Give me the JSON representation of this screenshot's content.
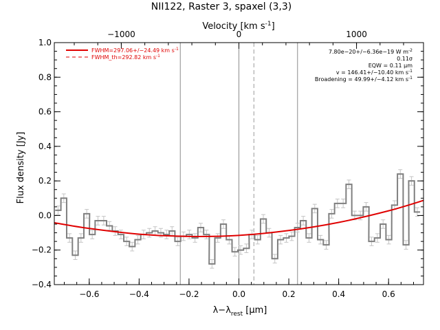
{
  "chart_data": {
    "type": "line",
    "title": "NII122, Raster 3, spaxel (3,3)",
    "xlabel_main": "λ−λ",
    "xlabel_sub": "rest",
    "xlabel_unit": " [μm]",
    "ylabel": "Flux density [Jy]",
    "top_axis_label": "Velocity [km s",
    "top_axis_label_sup": "-1",
    "top_axis_label_end": "]",
    "xlim": [
      -0.74,
      0.74
    ],
    "ylim": [
      -0.4,
      1.0
    ],
    "x_ticks": [
      -0.6,
      -0.4,
      -0.2,
      0.0,
      0.2,
      0.4,
      0.6
    ],
    "x_tick_labels": [
      "−0.6",
      "−0.4",
      "−0.2",
      "0.0",
      "0.2",
      "0.4",
      "0.6"
    ],
    "y_ticks": [
      -0.4,
      -0.2,
      0.0,
      0.2,
      0.4,
      0.6,
      0.8,
      1.0
    ],
    "y_tick_labels": [
      "−0.4",
      "−0.2",
      "0.0",
      "0.2",
      "0.4",
      "0.6",
      "0.8",
      "1.0"
    ],
    "top_ticks_x": [
      -0.4715,
      0.0,
      0.4715
    ],
    "top_tick_labels": [
      "−1000",
      "0",
      "1000"
    ],
    "legend": [
      {
        "label": "FWHM=297.06+/−24.49 km s",
        "sup": "-1",
        "style": "solid",
        "color": "#e00000"
      },
      {
        "label": "FWHM_th=292.82 km s",
        "sup": "-1",
        "style": "dashed",
        "color": "#e00000"
      }
    ],
    "annotations": [
      {
        "text": "7.80e−20+/−6.36e−19 W m",
        "sup": "-2"
      },
      {
        "text": "0.11σ",
        "sup": ""
      },
      {
        "text": "EQW = 0.11 μm",
        "sup": ""
      },
      {
        "text": "v = 146.41+/−10.40 km s",
        "sup": "-1"
      },
      {
        "text": "Broadening = 49.99+/−4.12 km s",
        "sup": "-1"
      }
    ],
    "vlines_solid": [
      -0.235,
      0.0,
      0.235
    ],
    "vline_dashed": 0.06,
    "spectrum": {
      "name": "data",
      "color": "#7f7f7f",
      "step_width": 0.0228,
      "x": [
        -0.725,
        -0.702,
        -0.679,
        -0.656,
        -0.633,
        -0.61,
        -0.588,
        -0.565,
        -0.542,
        -0.519,
        -0.496,
        -0.473,
        -0.45,
        -0.428,
        -0.405,
        -0.382,
        -0.359,
        -0.336,
        -0.313,
        -0.29,
        -0.268,
        -0.245,
        -0.222,
        -0.199,
        -0.176,
        -0.153,
        -0.13,
        -0.108,
        -0.085,
        -0.062,
        -0.039,
        -0.016,
        0.007,
        0.03,
        0.052,
        0.075,
        0.098,
        0.121,
        0.144,
        0.167,
        0.19,
        0.212,
        0.235,
        0.258,
        0.281,
        0.304,
        0.327,
        0.35,
        0.372,
        0.395,
        0.418,
        0.441,
        0.464,
        0.487,
        0.51,
        0.532,
        0.555,
        0.578,
        0.601,
        0.624,
        0.647,
        0.67,
        0.692,
        0.715
      ],
      "y": [
        0.03,
        0.1,
        -0.13,
        -0.23,
        -0.13,
        0.01,
        -0.11,
        -0.03,
        -0.03,
        -0.06,
        -0.09,
        -0.11,
        -0.15,
        -0.18,
        -0.14,
        -0.11,
        -0.1,
        -0.09,
        -0.1,
        -0.11,
        -0.09,
        -0.15,
        -0.12,
        -0.11,
        -0.13,
        -0.07,
        -0.11,
        -0.28,
        -0.13,
        -0.05,
        -0.14,
        -0.21,
        -0.2,
        -0.19,
        -0.11,
        -0.14,
        -0.02,
        -0.1,
        -0.25,
        -0.14,
        -0.13,
        -0.12,
        -0.07,
        -0.03,
        -0.13,
        0.04,
        -0.14,
        -0.17,
        0.01,
        0.07,
        0.07,
        0.18,
        0.0,
        0.0,
        0.05,
        -0.15,
        -0.13,
        -0.05,
        -0.14,
        0.06,
        0.24,
        -0.17,
        0.2,
        0.02
      ],
      "err": 0.025
    },
    "fit": {
      "name": "fit",
      "color": "#e00000",
      "x": [
        -0.74,
        -0.6,
        -0.4,
        -0.2,
        0.0,
        0.2,
        0.4,
        0.6,
        0.74
      ],
      "y": [
        -0.042,
        -0.075,
        -0.108,
        -0.121,
        -0.115,
        -0.087,
        -0.04,
        0.027,
        0.087
      ]
    }
  }
}
